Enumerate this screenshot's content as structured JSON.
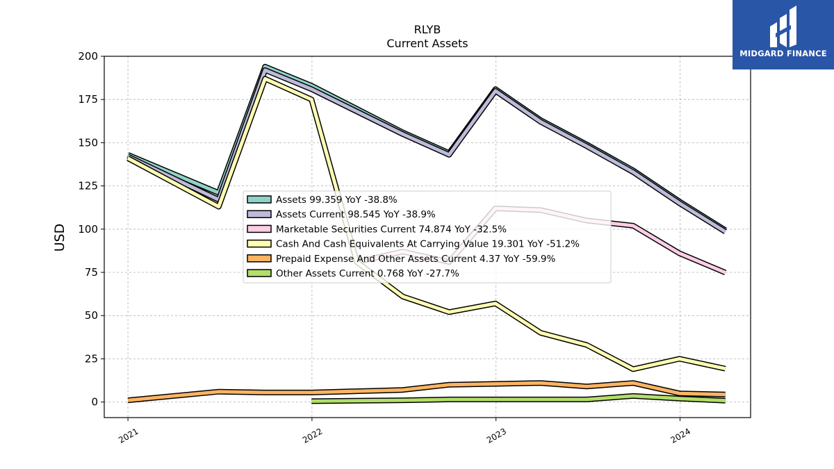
{
  "chart_data": {
    "type": "line",
    "title": "RLYB",
    "subtitle": "Current  Assets",
    "ylabel": "USD",
    "xlabel": "",
    "ylim": [
      -9,
      200
    ],
    "yticks": [
      0,
      25,
      50,
      75,
      100,
      125,
      150,
      175,
      200
    ],
    "xlim": [
      "2020-11-15",
      "2024-05-20"
    ],
    "xticks": [
      {
        "date": "2021-01-01",
        "label": "2021"
      },
      {
        "date": "2022-01-01",
        "label": "2022"
      },
      {
        "date": "2023-01-01",
        "label": "2023"
      },
      {
        "date": "2024-01-01",
        "label": "2024"
      }
    ],
    "grid": true,
    "legend_position": "center",
    "series": [
      {
        "name": "Assets  99.359 YoY -38.8%",
        "color": "#8dd3c7",
        "points": [
          [
            "2021-01-01",
            143
          ],
          [
            "2021-06-30",
            121
          ],
          [
            "2021-09-30",
            194
          ],
          [
            "2021-12-31",
            183
          ],
          [
            "2022-06-30",
            156
          ],
          [
            "2022-09-30",
            144
          ],
          [
            "2022-12-31",
            181
          ],
          [
            "2023-03-31",
            163
          ],
          [
            "2023-06-30",
            149
          ],
          [
            "2023-09-30",
            134
          ],
          [
            "2023-12-31",
            116
          ],
          [
            "2024-03-31",
            99.4
          ]
        ]
      },
      {
        "name": "Assets Current  98.545 YoY -38.9%",
        "color": "#bebada",
        "points": [
          [
            "2021-01-01",
            142
          ],
          [
            "2021-06-30",
            117
          ],
          [
            "2021-09-30",
            192
          ],
          [
            "2021-12-31",
            181
          ],
          [
            "2022-06-30",
            155
          ],
          [
            "2022-09-30",
            143
          ],
          [
            "2022-12-31",
            180
          ],
          [
            "2023-03-31",
            162
          ],
          [
            "2023-06-30",
            148
          ],
          [
            "2023-09-30",
            133
          ],
          [
            "2023-12-31",
            115
          ],
          [
            "2024-03-31",
            98.5
          ]
        ]
      },
      {
        "name": "Marketable Securities Current  74.874 YoY -32.5%",
        "color": "#fccde5",
        "points": [
          [
            "2022-03-31",
            81
          ],
          [
            "2022-06-30",
            87
          ],
          [
            "2022-09-30",
            81
          ],
          [
            "2022-12-31",
            112
          ],
          [
            "2023-03-31",
            111
          ],
          [
            "2023-06-30",
            105
          ],
          [
            "2023-09-30",
            102
          ],
          [
            "2023-12-31",
            86
          ],
          [
            "2024-03-31",
            74.9
          ]
        ]
      },
      {
        "name": "Cash And Cash Equivalents At Carrying Value  19.301 YoY -51.2%",
        "color": "#ffffb3",
        "points": [
          [
            "2021-01-01",
            141
          ],
          [
            "2021-06-30",
            113
          ],
          [
            "2021-09-30",
            187
          ],
          [
            "2021-12-31",
            175
          ],
          [
            "2022-03-31",
            81
          ],
          [
            "2022-06-30",
            61
          ],
          [
            "2022-09-30",
            52
          ],
          [
            "2022-12-31",
            57
          ],
          [
            "2023-03-31",
            40
          ],
          [
            "2023-06-30",
            33
          ],
          [
            "2023-09-30",
            19
          ],
          [
            "2023-12-31",
            25
          ],
          [
            "2024-03-31",
            19.3
          ]
        ]
      },
      {
        "name": "Prepaid Expense And Other Assets Current  4.37 YoY -59.9%",
        "color": "#fdb462",
        "points": [
          [
            "2021-01-01",
            1
          ],
          [
            "2021-06-30",
            6
          ],
          [
            "2021-09-30",
            5.5
          ],
          [
            "2021-12-31",
            5.5
          ],
          [
            "2022-06-30",
            7
          ],
          [
            "2022-09-30",
            10
          ],
          [
            "2022-12-31",
            10.5
          ],
          [
            "2023-03-31",
            11
          ],
          [
            "2023-06-30",
            9
          ],
          [
            "2023-09-30",
            11
          ],
          [
            "2023-12-31",
            5
          ],
          [
            "2024-03-31",
            4.4
          ]
        ]
      },
      {
        "name": "Other Assets Current  0.768 YoY -27.7%",
        "color": "#b3de69",
        "points": [
          [
            "2021-12-31",
            0.5
          ],
          [
            "2022-06-30",
            1
          ],
          [
            "2022-09-30",
            1.5
          ],
          [
            "2022-12-31",
            1.5
          ],
          [
            "2023-03-31",
            1.5
          ],
          [
            "2023-06-30",
            1.5
          ],
          [
            "2023-09-30",
            3.5
          ],
          [
            "2023-12-31",
            2
          ],
          [
            "2024-03-31",
            0.8
          ]
        ]
      }
    ]
  },
  "logo": {
    "label": "MIDGARD FINANCE",
    "background": "#2a56a8"
  }
}
